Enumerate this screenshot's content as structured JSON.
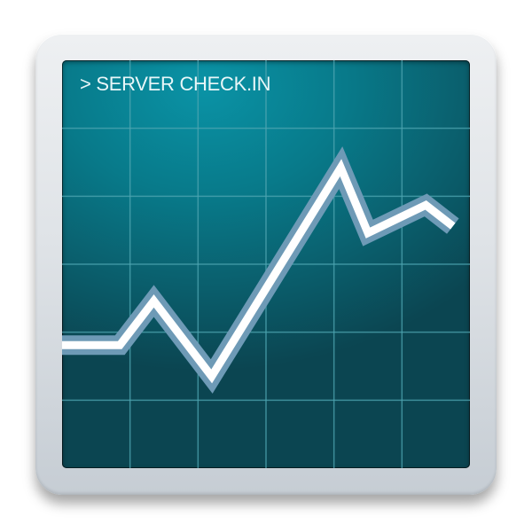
{
  "icon": {
    "name": "server-check-app-icon",
    "screen_text": "> SERVER CHECK.IN"
  },
  "colors": {
    "frame_light": "#eef0f2",
    "frame_dark": "#c6cdd4",
    "screen_teal": "#0a93a6",
    "screen_dark": "#0b4551",
    "grid": "#4fa6b2",
    "line_glow": "#6e9ab6",
    "line": "#ffffff"
  },
  "chart_data": {
    "type": "line",
    "title": "",
    "xlabel": "",
    "ylabel": "",
    "grid": true,
    "grid_cols": 6,
    "grid_rows": 6,
    "xlim": [
      0,
      6
    ],
    "ylim": [
      0,
      6
    ],
    "series": [
      {
        "x": [
          0,
          0.85,
          1.35,
          2.2,
          4.1,
          4.5,
          5.35,
          5.75
        ],
        "y": [
          1.81,
          1.81,
          2.46,
          1.35,
          4.42,
          3.46,
          3.87,
          3.56
        ]
      }
    ]
  }
}
